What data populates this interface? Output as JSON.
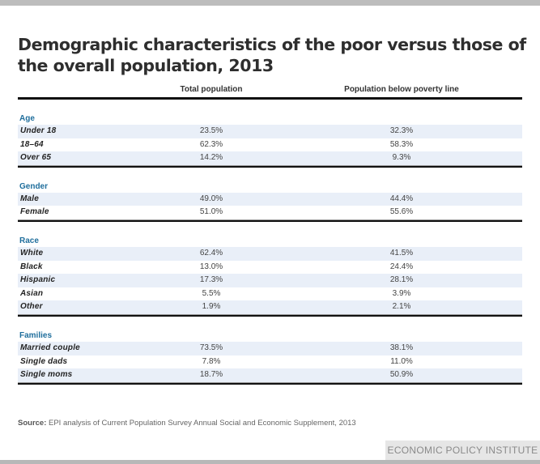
{
  "title": "Demographic characteristics of the poor versus those of the overall population, 2013",
  "columns": [
    "Total population",
    "Population below poverty line"
  ],
  "colors": {
    "category_header": "#1f6e9c",
    "row_shade": "#e9eff8",
    "rule": "#111111"
  },
  "sections": [
    {
      "name": "Age",
      "rows": [
        {
          "label": "Under 18",
          "total": "23.5%",
          "poverty": "32.3%"
        },
        {
          "label": "18–64",
          "total": "62.3%",
          "poverty": "58.3%"
        },
        {
          "label": "Over 65",
          "total": "14.2%",
          "poverty": "9.3%"
        }
      ]
    },
    {
      "name": "Gender",
      "rows": [
        {
          "label": "Male",
          "total": "49.0%",
          "poverty": "44.4%"
        },
        {
          "label": "Female",
          "total": "51.0%",
          "poverty": "55.6%"
        }
      ]
    },
    {
      "name": "Race",
      "rows": [
        {
          "label": "White",
          "total": "62.4%",
          "poverty": "41.5%"
        },
        {
          "label": "Black",
          "total": "13.0%",
          "poverty": "24.4%"
        },
        {
          "label": "Hispanic",
          "total": "17.3%",
          "poverty": "28.1%"
        },
        {
          "label": "Asian",
          "total": "5.5%",
          "poverty": "3.9%"
        },
        {
          "label": "Other",
          "total": "1.9%",
          "poverty": "2.1%"
        }
      ]
    },
    {
      "name": "Families",
      "rows": [
        {
          "label": "Married couple",
          "total": "73.5%",
          "poverty": "38.1%"
        },
        {
          "label": "Single dads",
          "total": "7.8%",
          "poverty": "11.0%"
        },
        {
          "label": "Single moms",
          "total": "18.7%",
          "poverty": "50.9%"
        }
      ]
    }
  ],
  "source": {
    "label": "Source:",
    "text": " EPI analysis of Current Population Survey Annual Social and Economic Supplement, 2013"
  },
  "branding": "ECONOMIC POLICY INSTITUTE"
}
